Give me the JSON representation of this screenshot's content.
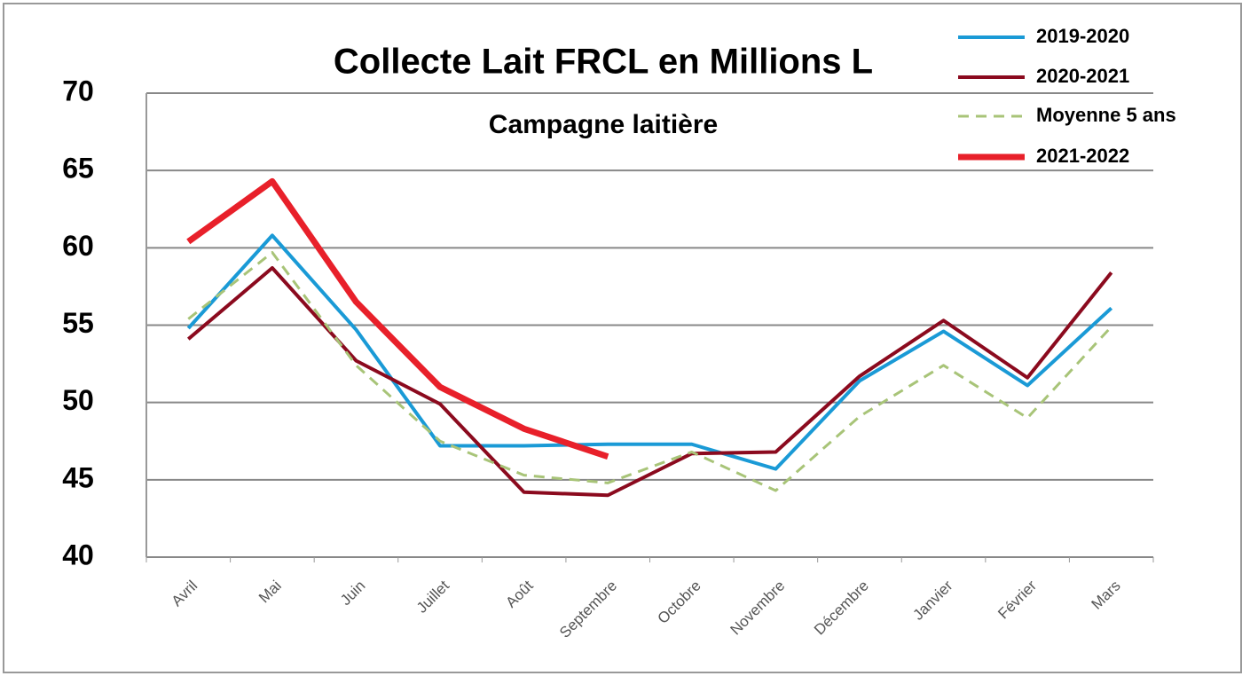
{
  "chart_data": {
    "type": "line",
    "title": "Collecte Lait FRCL en Millions L",
    "subtitle": "Campagne laitière",
    "categories": [
      "Avril",
      "Mai",
      "Juin",
      "Juillet",
      "Août",
      "Septembre",
      "Octobre",
      "Novembre",
      "Décembre",
      "Janvier",
      "Février",
      "Mars"
    ],
    "series": [
      {
        "name": "2019-2020",
        "color": "#1a9ad6",
        "style": "solid",
        "values": [
          54.8,
          60.8,
          54.7,
          47.2,
          47.2,
          47.3,
          47.3,
          45.7,
          51.4,
          54.6,
          51.1,
          56.1
        ]
      },
      {
        "name": "2020-2021",
        "color": "#8b0a1e",
        "style": "solid",
        "values": [
          54.1,
          58.7,
          52.7,
          49.9,
          44.2,
          44.0,
          46.7,
          46.8,
          51.7,
          55.3,
          51.6,
          58.4
        ]
      },
      {
        "name": "Moyenne 5 ans",
        "color": "#a8c478",
        "style": "dashed",
        "values": [
          55.4,
          59.7,
          52.4,
          47.5,
          45.3,
          44.8,
          46.8,
          44.3,
          49.1,
          52.4,
          49.0,
          54.9
        ]
      },
      {
        "name": "2021-2022",
        "color": "#e8202a",
        "style": "thick",
        "values": [
          60.4,
          64.3,
          56.5,
          51.0,
          48.3,
          46.5,
          null,
          null,
          null,
          null,
          null,
          null
        ]
      }
    ],
    "ylim": [
      40,
      70
    ],
    "yticks": [
      40,
      45,
      50,
      55,
      60,
      65,
      70
    ],
    "grid": true
  }
}
